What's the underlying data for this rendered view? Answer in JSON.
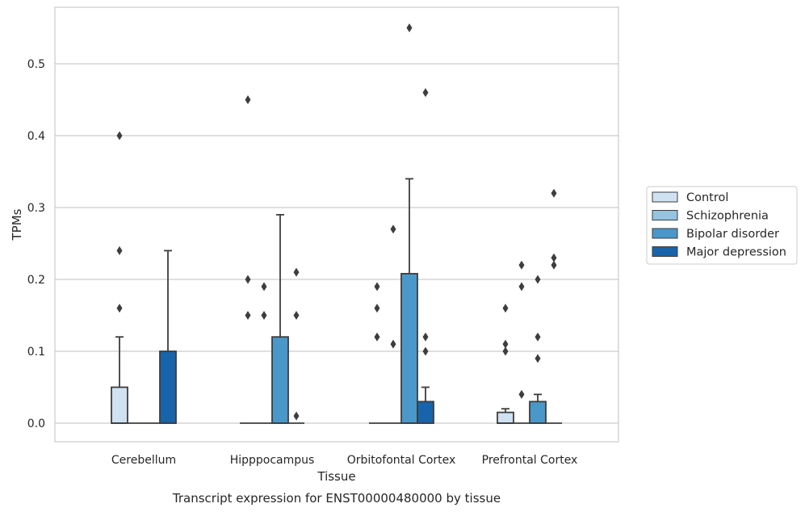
{
  "chart_data": {
    "type": "box",
    "caption": "Transcript expression for ENST00000480000 by tissue",
    "xlabel": "Tissue",
    "ylabel": "TPMs",
    "ylim": [
      -0.027,
      0.58
    ],
    "yticks": [
      0.0,
      0.1,
      0.2,
      0.3,
      0.4,
      0.5
    ],
    "ytick_labels": [
      "0.0",
      "0.1",
      "0.2",
      "0.3",
      "0.4",
      "0.5"
    ],
    "grid": "horizontal",
    "legend_position": "right",
    "categories": [
      "Cerebellum",
      "Hipppocampus",
      "Orbitofontal Cortex",
      "Prefrontal Cortex"
    ],
    "series": [
      {
        "name": "Control",
        "color": "#d0e1f2",
        "boxes": [
          {
            "q1": 0.0,
            "median": 0.0,
            "q3": 0.05,
            "whisker_low": 0.0,
            "whisker_high": 0.12,
            "outliers": [
              0.16,
              0.24,
              0.4
            ]
          },
          {
            "q1": 0.0,
            "median": 0.0,
            "q3": 0.0,
            "whisker_low": 0.0,
            "whisker_high": 0.0,
            "outliers": [
              0.15,
              0.2,
              0.45
            ]
          },
          {
            "q1": 0.0,
            "median": 0.0,
            "q3": 0.0,
            "whisker_low": 0.0,
            "whisker_high": 0.0,
            "outliers": [
              0.12,
              0.16,
              0.19
            ]
          },
          {
            "q1": 0.0,
            "median": 0.0,
            "q3": 0.015,
            "whisker_low": 0.0,
            "whisker_high": 0.02,
            "outliers": [
              0.1,
              0.11,
              0.16
            ]
          }
        ]
      },
      {
        "name": "Schizophrenia",
        "color": "#94c4df",
        "boxes": [
          {
            "q1": 0.0,
            "median": 0.0,
            "q3": 0.0,
            "whisker_low": 0.0,
            "whisker_high": 0.0,
            "outliers": []
          },
          {
            "q1": 0.0,
            "median": 0.0,
            "q3": 0.0,
            "whisker_low": 0.0,
            "whisker_high": 0.0,
            "outliers": [
              0.15,
              0.19
            ]
          },
          {
            "q1": 0.0,
            "median": 0.0,
            "q3": 0.0,
            "whisker_low": 0.0,
            "whisker_high": 0.0,
            "outliers": [
              0.11,
              0.27
            ]
          },
          {
            "q1": 0.0,
            "median": 0.0,
            "q3": 0.0,
            "whisker_low": 0.0,
            "whisker_high": 0.0,
            "outliers": [
              0.04,
              0.19,
              0.22
            ]
          }
        ]
      },
      {
        "name": "Bipolar disorder",
        "color": "#4a98c9",
        "boxes": [
          {
            "q1": 0.0,
            "median": 0.0,
            "q3": 0.0,
            "whisker_low": 0.0,
            "whisker_high": 0.0,
            "outliers": []
          },
          {
            "q1": 0.0,
            "median": 0.0,
            "q3": 0.12,
            "whisker_low": 0.0,
            "whisker_high": 0.29,
            "outliers": []
          },
          {
            "q1": 0.0,
            "median": 0.0,
            "q3": 0.208,
            "whisker_low": 0.0,
            "whisker_high": 0.34,
            "outliers": [
              0.55
            ]
          },
          {
            "q1": 0.0,
            "median": 0.0,
            "q3": 0.03,
            "whisker_low": 0.0,
            "whisker_high": 0.04,
            "outliers": [
              0.09,
              0.12,
              0.2
            ]
          }
        ]
      },
      {
        "name": "Major depression",
        "color": "#1764ab",
        "boxes": [
          {
            "q1": 0.0,
            "median": 0.0,
            "q3": 0.1,
            "whisker_low": 0.0,
            "whisker_high": 0.24,
            "outliers": []
          },
          {
            "q1": 0.0,
            "median": 0.0,
            "q3": 0.0,
            "whisker_low": 0.0,
            "whisker_high": 0.0,
            "outliers": [
              0.01,
              0.15,
              0.21
            ]
          },
          {
            "q1": 0.0,
            "median": 0.0,
            "q3": 0.03,
            "whisker_low": 0.0,
            "whisker_high": 0.05,
            "outliers": [
              0.1,
              0.12,
              0.46
            ]
          },
          {
            "q1": 0.0,
            "median": 0.0,
            "q3": 0.0,
            "whisker_low": 0.0,
            "whisker_high": 0.0,
            "outliers": [
              0.22,
              0.23,
              0.32
            ]
          }
        ]
      }
    ]
  }
}
